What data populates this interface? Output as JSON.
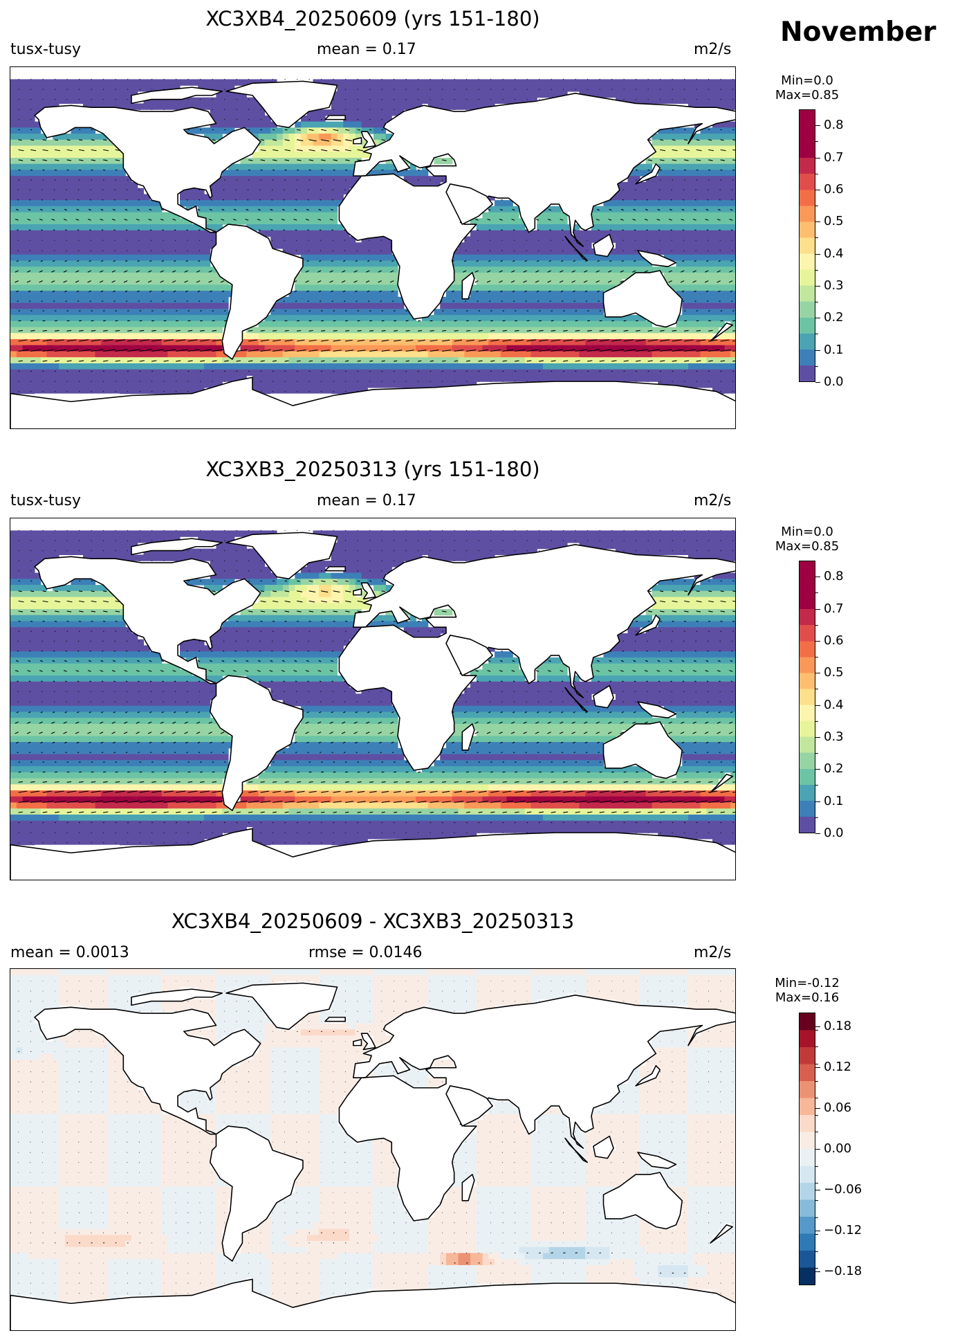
{
  "figure": {
    "month": "November"
  },
  "colors": {
    "spectral": [
      "#5e4fa2",
      "#3d80b8",
      "#4aa4b2",
      "#6cc4a4",
      "#97d4a4",
      "#c1e69e",
      "#e7f59a",
      "#fdf5ad",
      "#fedf8b",
      "#fdbf6f",
      "#fa9858",
      "#f26e47",
      "#df4e4b",
      "#c2294a",
      "#9e0142"
    ],
    "rdbu": [
      "#053061",
      "#1a5796",
      "#2f79b5",
      "#5599c8",
      "#86bbd9",
      "#b4d5e7",
      "#d6e7f1",
      "#eaf1f5",
      "#f9ece5",
      "#fbdac9",
      "#f7b799",
      "#ec9274",
      "#d6604d",
      "#c03a3a",
      "#a61429",
      "#67001f"
    ],
    "land": "#ffffff",
    "coast": "#000000"
  },
  "chart_data": [
    {
      "type": "heatmap",
      "title": "XC3XB4_20250609 (yrs 151-180)",
      "left_label": "tusx-tusy",
      "center_label": "mean = 0.17",
      "right_label": "m2/s",
      "colorbar": {
        "min_label": "Min=0.0",
        "max_label": "Max=0.85",
        "vmin": 0.0,
        "vmax": 0.85,
        "step": 0.05,
        "ticks": [
          "0.0",
          "0.1",
          "0.2",
          "0.3",
          "0.4",
          "0.5",
          "0.6",
          "0.7",
          "0.8"
        ],
        "tick_values": [
          0,
          0.1,
          0.2,
          0.3,
          0.4,
          0.5,
          0.6,
          0.7,
          0.8
        ]
      },
      "variant": 0
    },
    {
      "type": "heatmap",
      "title": "XC3XB3_20250313 (yrs 151-180)",
      "left_label": "tusx-tusy",
      "center_label": "mean = 0.17",
      "right_label": "m2/s",
      "colorbar": {
        "min_label": "Min=0.0",
        "max_label": "Max=0.85",
        "vmin": 0.0,
        "vmax": 0.85,
        "step": 0.05,
        "ticks": [
          "0.0",
          "0.1",
          "0.2",
          "0.3",
          "0.4",
          "0.5",
          "0.6",
          "0.7",
          "0.8"
        ],
        "tick_values": [
          0,
          0.1,
          0.2,
          0.3,
          0.4,
          0.5,
          0.6,
          0.7,
          0.8
        ]
      },
      "variant": 1
    },
    {
      "type": "heatmap",
      "title": "XC3XB4_20250609 - XC3XB3_20250313",
      "left_label": "mean = 0.0013",
      "center_label": "rmse = 0.0146",
      "right_label": "m2/s",
      "colorbar": {
        "min_label": "Min=-0.12",
        "max_label": "Max=0.16",
        "vmin": -0.2,
        "vmax": 0.2,
        "step": 0.025,
        "ticks": [
          "0.18",
          "0.12",
          "0.06",
          "0.00",
          "−0.06",
          "−0.12",
          "−0.18"
        ],
        "tick_values": [
          0.18,
          0.12,
          0.06,
          0,
          -0.06,
          -0.12,
          -0.18
        ]
      },
      "variant": 2
    }
  ]
}
